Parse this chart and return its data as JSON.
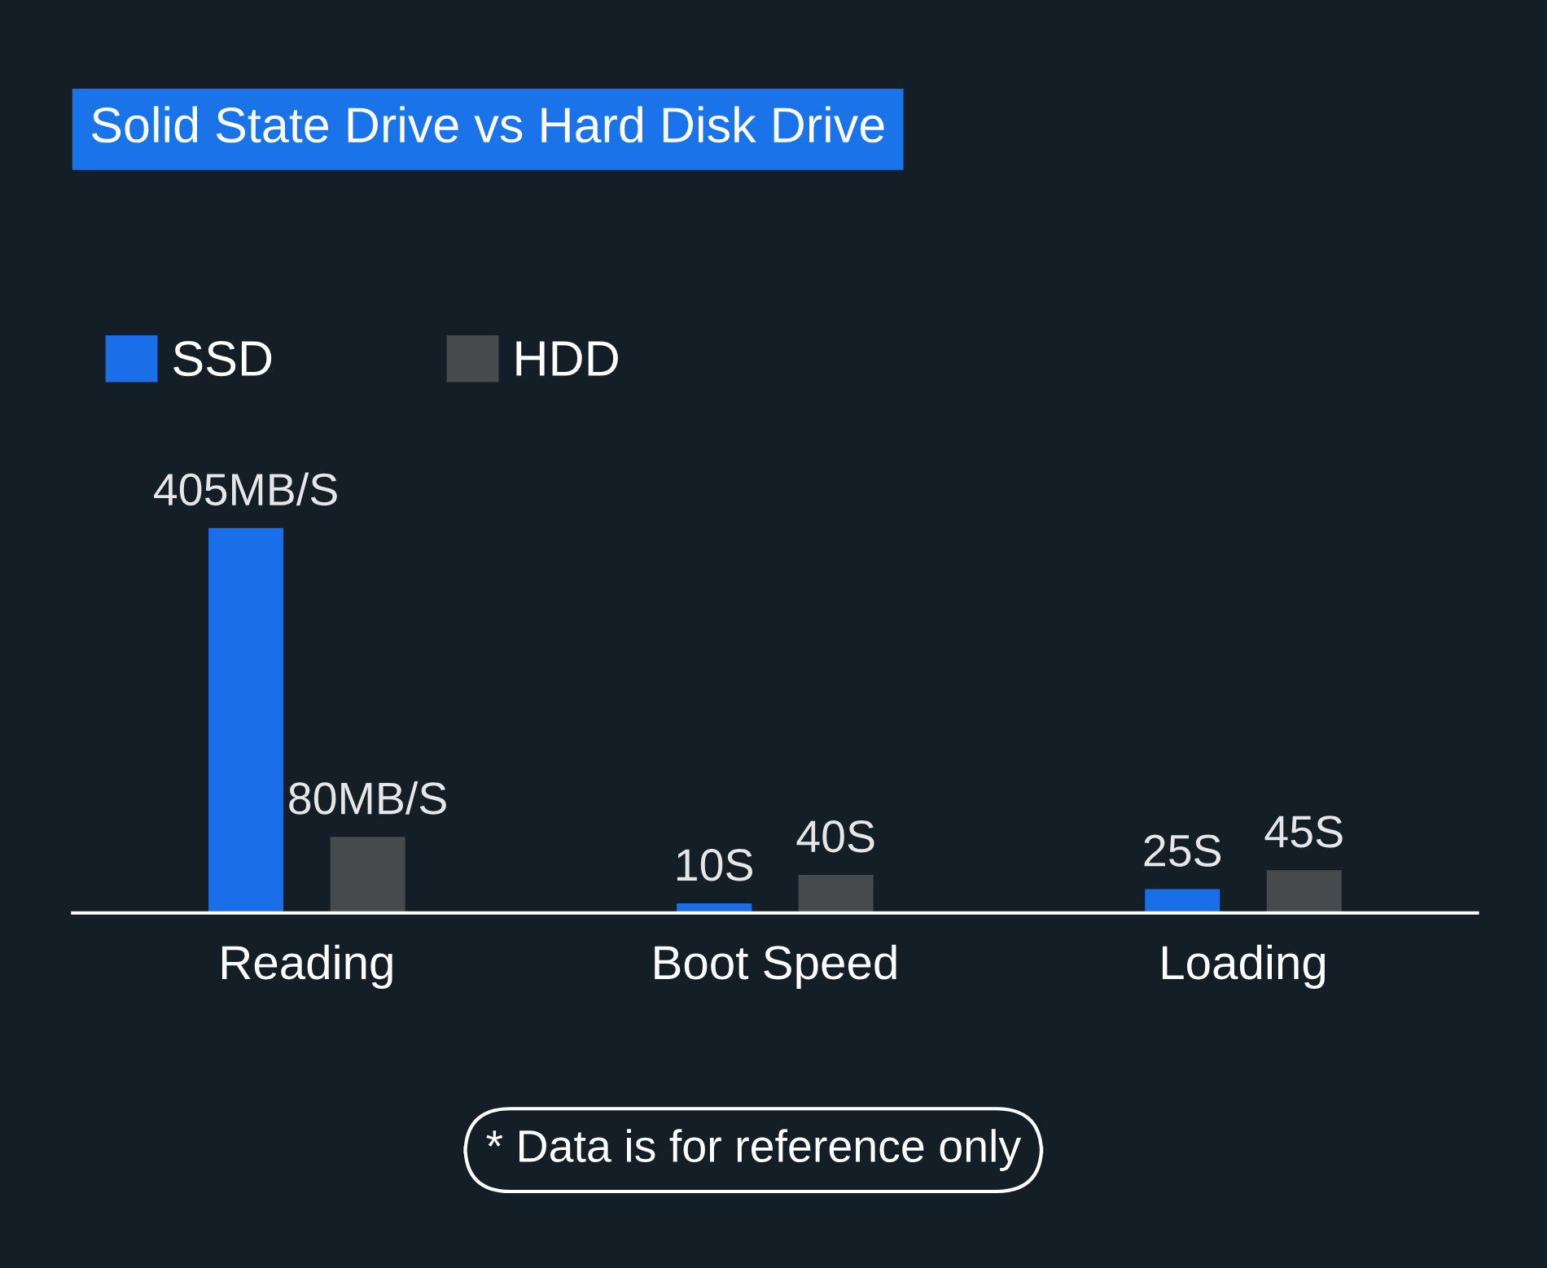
{
  "chart_data": {
    "type": "bar",
    "title": "Solid State Drive vs Hard Disk Drive",
    "categories": [
      "Reading",
      "Boot Speed",
      "Loading"
    ],
    "series": [
      {
        "name": "SSD",
        "color": "#1a6fe8",
        "values": [
          405,
          10,
          25
        ],
        "value_labels": [
          "405MB/S",
          "10S",
          "25S"
        ]
      },
      {
        "name": "HDD",
        "color": "#474a4d",
        "values": [
          80,
          40,
          45
        ],
        "value_labels": [
          "80MB/S",
          "40S",
          "45S"
        ]
      }
    ],
    "legend": "top left",
    "grid": false,
    "annotations": [
      "* Data is for reference only"
    ]
  }
}
